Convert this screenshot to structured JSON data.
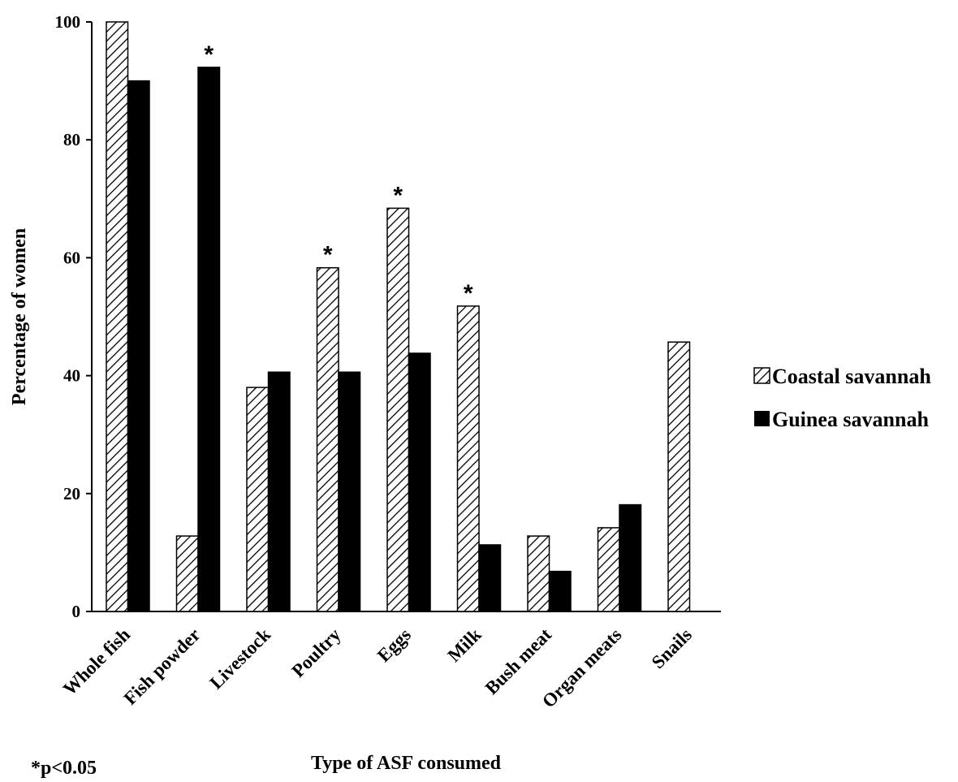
{
  "chart_data": {
    "type": "bar",
    "title": "",
    "xlabel": "Type of ASF consumed",
    "ylabel": "Percentage of women",
    "ylim": [
      0,
      100
    ],
    "yticks": [
      0,
      20,
      40,
      60,
      80,
      100
    ],
    "categories": [
      "Whole fish",
      "Fish powder",
      "Livestock",
      "Poultry",
      "Eggs",
      "Milk",
      "Bush meat",
      "Organ meats",
      "Snails"
    ],
    "series": [
      {
        "name": "Coastal savannah",
        "pattern": "hatched",
        "values": [
          100,
          12.8,
          38,
          58.3,
          68.4,
          51.8,
          12.8,
          14.2,
          45.7
        ]
      },
      {
        "name": "Guinea savannah",
        "pattern": "solid",
        "color": "#000000",
        "values": [
          90,
          92.3,
          40.6,
          40.6,
          43.8,
          11.3,
          6.8,
          18.1,
          0
        ]
      }
    ],
    "significance": {
      "marker": "*",
      "flags": [
        false,
        true,
        false,
        true,
        true,
        true,
        false,
        false,
        false
      ],
      "on_series": [
        null,
        1,
        null,
        0,
        0,
        0,
        null,
        null,
        null
      ]
    },
    "legend_position": "right",
    "grid": false,
    "footnote": "*p<0.05"
  }
}
